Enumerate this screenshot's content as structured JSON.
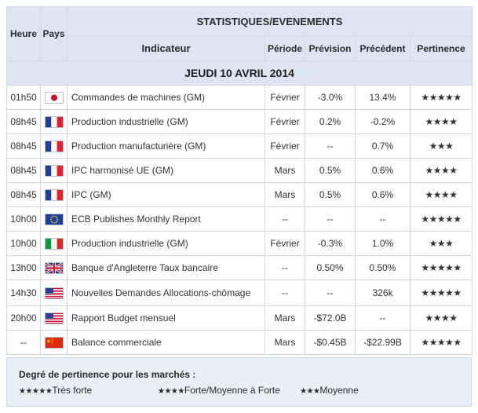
{
  "header": {
    "heure": "Heure",
    "pays": "Pays",
    "section_title": "STATISTIQUES/EVENEMENTS",
    "col_indicator": "Indicateur",
    "col_period": "Période",
    "col_forecast": "Prévision",
    "col_previous": "Précédent",
    "col_relevance": "Pertinence"
  },
  "date_label": "JEUDI 10 AVRIL 2014",
  "events": [
    {
      "time": "01h50",
      "flag": "japan-flag-icon",
      "indicator": "Commandes de machines (GM)",
      "period": "Février",
      "forecast": "-3.0%",
      "previous": "13.4%",
      "relevance": "★★★★★"
    },
    {
      "time": "08h45",
      "flag": "france-flag-icon",
      "indicator": "Production industrielle (GM)",
      "period": "Février",
      "forecast": "0.2%",
      "previous": "-0.2%",
      "relevance": "★★★★"
    },
    {
      "time": "08h45",
      "flag": "france-flag-icon",
      "indicator": "Production manufacturière (GM)",
      "period": "Février",
      "forecast": "--",
      "previous": "0.7%",
      "relevance": "★★★"
    },
    {
      "time": "08h45",
      "flag": "france-flag-icon",
      "indicator": "IPC harmonisé UE (GM)",
      "period": "Mars",
      "forecast": "0.5%",
      "previous": "0.6%",
      "relevance": "★★★★"
    },
    {
      "time": "08h45",
      "flag": "france-flag-icon",
      "indicator": "IPC (GM)",
      "period": "Mars",
      "forecast": "0.5%",
      "previous": "0.6%",
      "relevance": "★★★★"
    },
    {
      "time": "10h00",
      "flag": "eu-flag-icon",
      "indicator": "ECB Publishes Monthly Report",
      "period": "--",
      "forecast": "--",
      "previous": "--",
      "relevance": "★★★★★"
    },
    {
      "time": "10h00",
      "flag": "italy-flag-icon",
      "indicator": "Production industrielle (GM)",
      "period": "Février",
      "forecast": "-0.3%",
      "previous": "1.0%",
      "relevance": "★★★"
    },
    {
      "time": "13h00",
      "flag": "uk-flag-icon",
      "indicator": "Banque d'Angleterre Taux bancaire",
      "period": "--",
      "forecast": "0.50%",
      "previous": "0.50%",
      "relevance": "★★★★★"
    },
    {
      "time": "14h30",
      "flag": "usa-flag-icon",
      "indicator": "Nouvelles Demandes Allocations-chômage",
      "period": "--",
      "forecast": "--",
      "previous": "326k",
      "relevance": "★★★★★"
    },
    {
      "time": "20h00",
      "flag": "usa-flag-icon",
      "indicator": "Rapport Budget mensuel",
      "period": "Mars",
      "forecast": "-$72.0B",
      "previous": "--",
      "relevance": "★★★★"
    },
    {
      "time": "--",
      "flag": "china-flag-icon",
      "indicator": "Balance commerciale",
      "period": "Mars",
      "forecast": "-$0.45B",
      "previous": "-$22.99B",
      "relevance": "★★★★★"
    }
  ],
  "legend": {
    "title": "Degré de pertinence pour les marchés :",
    "items": [
      {
        "stars": "★★★★★",
        "label": "Très forte"
      },
      {
        "stars": "★★★★",
        "label": "Forte/Moyenne à Forte"
      },
      {
        "stars": "★★★",
        "label": "Moyenne"
      }
    ]
  },
  "colors": {
    "header_bg": "#dce6f2",
    "border": "#cfd8e3",
    "legend_bg": "#e9eff6"
  }
}
